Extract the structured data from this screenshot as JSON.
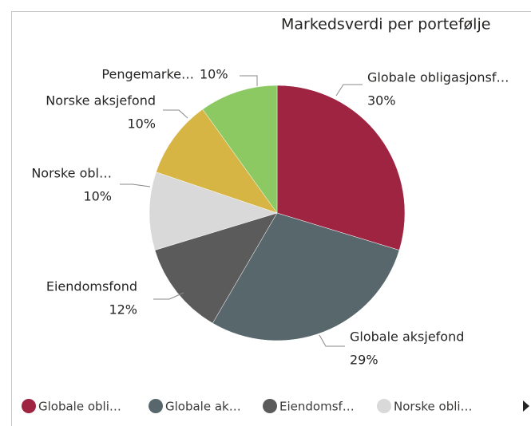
{
  "chart_data": {
    "type": "pie",
    "title": "Markedsverdi per portefølje",
    "categories": [
      "Globale obligasjonsf…",
      "Globale aksjefond",
      "Eiendomsfond",
      "Norske obl…",
      "Norske aksjefond",
      "Pengemarke…"
    ],
    "values": [
      30,
      29,
      12,
      10,
      10,
      10
    ],
    "value_labels": [
      "30%",
      "29%",
      "12%",
      "10%",
      "10%",
      "10%"
    ],
    "colors": [
      "#9e2441",
      "#57676c",
      "#5b5b5b",
      "#d9d9d9",
      "#d6b545",
      "#8cc962"
    ],
    "legend_labels": [
      "Globale obli…",
      "Globale ak…",
      "Eiendomsf…",
      "Norske obli…"
    ]
  }
}
